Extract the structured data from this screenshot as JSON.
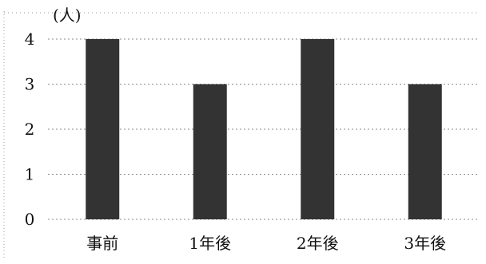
{
  "chart_data": {
    "type": "bar",
    "title": "",
    "xlabel": "",
    "ylabel": "(人)",
    "categories": [
      "事前",
      "1年後",
      "2年後",
      "3年後"
    ],
    "values": [
      4,
      3,
      4,
      3
    ],
    "ylim": [
      0,
      4
    ],
    "yticks": [
      "0",
      "1",
      "2",
      "3",
      "4"
    ],
    "grid": true,
    "legend": "none",
    "bar_color": "#333333"
  }
}
